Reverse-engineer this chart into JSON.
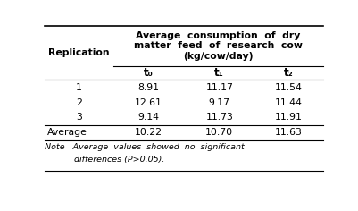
{
  "col_header_main": "Average  consumption  of  dry\nmatter  feed  of  research  cow\n(kg/cow/day)",
  "col_sub_headers": [
    "t₀",
    "t₁",
    "t₂"
  ],
  "row_header": "Replication",
  "rows": [
    [
      "1",
      "8.91",
      "11.17",
      "11.54"
    ],
    [
      "2",
      "12.61",
      "9.17",
      "11.44"
    ],
    [
      "3",
      "9.14",
      "11.73",
      "11.91"
    ]
  ],
  "average_row": [
    "Average",
    "10.22",
    "10.70",
    "11.63"
  ],
  "note_line1": "Note   Average  values  showed  no  significant",
  "note_line2": "          differences (P>0.05).",
  "bg_color": "#ffffff",
  "text_color": "#000000",
  "figsize": [
    4.02,
    2.36
  ],
  "dpi": 100
}
